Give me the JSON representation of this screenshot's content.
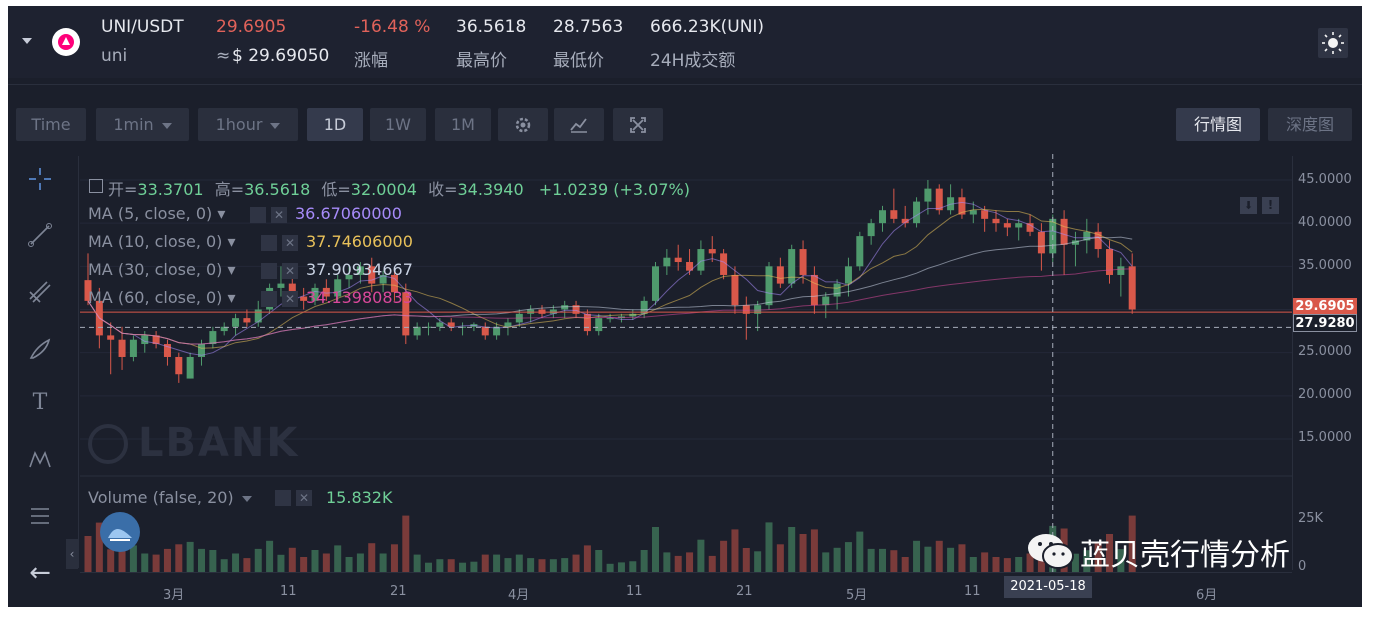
{
  "header": {
    "pair": "UNI/USDT",
    "name": "uni",
    "price": "29.6905",
    "usd_prefix": "≈",
    "usd_price": "$ 29.69050",
    "change": "-16.48 %",
    "change_label": "涨幅",
    "high": "36.5618",
    "high_label": "最高价",
    "low": "28.7563",
    "low_label": "最低价",
    "volume": "666.23K(UNI)",
    "volume_label": "24H成交额"
  },
  "toolbar": {
    "time": "Time",
    "min": "1min",
    "hour": "1hour",
    "d1": "1D",
    "w1": "1W",
    "m1": "1M",
    "market_tab": "行情图",
    "depth_tab": "深度图"
  },
  "legend": {
    "ohlc": {
      "open_label": "开=",
      "open": "33.3701",
      "high_label": "高=",
      "high": "36.5618",
      "low_label": "低=",
      "low": "32.0004",
      "close_label": "收=",
      "close": "34.3940",
      "change": "+1.0239 (+3.07%)"
    },
    "ma": [
      {
        "label": "MA (5, close, 0)",
        "value": "36.67060000",
        "color": "#a78bfa"
      },
      {
        "label": "MA (10, close, 0)",
        "value": "37.74606000",
        "color": "#e8c15a"
      },
      {
        "label": "MA (30, close, 0)",
        "value": "37.90934667",
        "color": "#c9d2e3"
      },
      {
        "label": "MA (60, close, 0)",
        "value": "34.13980833",
        "color": "#d9489a"
      }
    ],
    "volume_label": "Volume (false, 20)",
    "volume_value": "15.832K"
  },
  "y_axis": [
    "45.0000",
    "40.0000",
    "35.0000",
    "25.0000",
    "20.0000",
    "15.0000"
  ],
  "price_tag": "29.6905",
  "cross_tag": "27.9280",
  "vol_axis": [
    "25K",
    "0"
  ],
  "x_axis": [
    "3月",
    "11",
    "21",
    "4月",
    "11",
    "21",
    "5月",
    "11",
    "6月"
  ],
  "cursor_date": "2021-05-18",
  "watermark": "LBANK",
  "wechat_brand": "蓝贝壳行情分析",
  "colors": {
    "up": "#4f9a6d",
    "down": "#d9584a",
    "bg": "#1b1f2b"
  },
  "chart_data": {
    "type": "candlestick",
    "ohlc": [
      [
        33.4,
        36.5,
        30.5,
        31.0
      ],
      [
        31.0,
        32.5,
        25.5,
        27.0
      ],
      [
        27.0,
        28.5,
        22.5,
        26.5
      ],
      [
        26.5,
        28.0,
        23.0,
        24.5
      ],
      [
        24.5,
        27.0,
        24.0,
        26.5
      ],
      [
        26.0,
        27.5,
        25.0,
        27.0
      ],
      [
        27.0,
        27.5,
        25.5,
        26.0
      ],
      [
        26.0,
        26.5,
        23.5,
        24.5
      ],
      [
        24.5,
        25.0,
        21.5,
        22.5
      ],
      [
        22.0,
        25.0,
        22.0,
        24.5
      ],
      [
        24.5,
        26.5,
        23.5,
        26.0
      ],
      [
        26.0,
        28.0,
        25.5,
        27.5
      ],
      [
        27.5,
        28.5,
        27.0,
        28.0
      ],
      [
        28.0,
        29.5,
        27.0,
        29.0
      ],
      [
        29.0,
        30.0,
        28.0,
        28.5
      ],
      [
        28.5,
        31.0,
        28.0,
        30.0
      ],
      [
        30.0,
        33.0,
        29.5,
        32.5
      ],
      [
        32.5,
        35.0,
        31.5,
        33.0
      ],
      [
        33.0,
        34.0,
        30.5,
        31.5
      ],
      [
        31.5,
        32.5,
        30.0,
        31.0
      ],
      [
        31.0,
        33.0,
        30.5,
        32.5
      ],
      [
        32.5,
        33.5,
        31.0,
        31.5
      ],
      [
        31.5,
        34.0,
        31.0,
        33.5
      ],
      [
        33.5,
        35.0,
        32.5,
        34.0
      ],
      [
        34.0,
        35.5,
        33.0,
        35.0
      ],
      [
        35.0,
        36.0,
        32.0,
        33.0
      ],
      [
        33.0,
        34.5,
        32.0,
        34.0
      ],
      [
        34.0,
        34.5,
        31.0,
        32.0
      ],
      [
        32.0,
        33.0,
        26.0,
        27.0
      ],
      [
        27.0,
        28.5,
        26.5,
        28.0
      ],
      [
        28.0,
        28.5,
        27.0,
        28.0
      ],
      [
        28.0,
        29.0,
        27.5,
        28.5
      ],
      [
        28.5,
        29.0,
        27.5,
        28.0
      ],
      [
        28.0,
        28.5,
        27.0,
        28.0
      ],
      [
        28.0,
        28.5,
        27.5,
        28.3
      ],
      [
        28.0,
        28.5,
        26.5,
        27.0
      ],
      [
        27.0,
        28.5,
        26.5,
        28.0
      ],
      [
        28.0,
        29.0,
        27.0,
        28.5
      ],
      [
        28.5,
        30.0,
        28.0,
        29.5
      ],
      [
        29.5,
        30.5,
        28.5,
        30.0
      ],
      [
        30.0,
        30.5,
        29.0,
        29.5
      ],
      [
        29.5,
        30.5,
        29.0,
        30.0
      ],
      [
        30.0,
        31.0,
        29.0,
        30.5
      ],
      [
        30.5,
        31.0,
        29.0,
        29.5
      ],
      [
        29.5,
        30.0,
        27.0,
        27.5
      ],
      [
        27.5,
        29.5,
        27.0,
        29.0
      ],
      [
        29.0,
        29.5,
        28.5,
        29.0
      ],
      [
        29.0,
        29.5,
        28.5,
        29.2
      ],
      [
        29.2,
        30.0,
        28.8,
        29.5
      ],
      [
        29.5,
        31.5,
        29.0,
        31.0
      ],
      [
        31.0,
        35.5,
        30.5,
        35.0
      ],
      [
        35.0,
        37.0,
        34.0,
        36.0
      ],
      [
        36.0,
        37.5,
        34.5,
        35.5
      ],
      [
        35.5,
        37.0,
        34.0,
        34.5
      ],
      [
        34.5,
        38.0,
        34.0,
        37.0
      ],
      [
        37.0,
        38.5,
        35.5,
        36.5
      ],
      [
        36.5,
        37.0,
        33.5,
        34.0
      ],
      [
        34.0,
        35.0,
        29.5,
        30.5
      ],
      [
        30.5,
        31.5,
        26.5,
        29.5
      ],
      [
        29.5,
        31.0,
        27.5,
        30.5
      ],
      [
        30.5,
        35.5,
        30.0,
        35.0
      ],
      [
        35.0,
        36.0,
        32.5,
        33.0
      ],
      [
        33.0,
        37.5,
        32.5,
        37.0
      ],
      [
        37.0,
        38.0,
        33.0,
        34.0
      ],
      [
        34.0,
        35.0,
        29.5,
        30.5
      ],
      [
        30.5,
        32.0,
        29.0,
        31.5
      ],
      [
        31.5,
        33.5,
        30.0,
        33.0
      ],
      [
        33.0,
        36.0,
        31.5,
        35.0
      ],
      [
        35.0,
        39.0,
        34.5,
        38.5
      ],
      [
        38.5,
        40.5,
        37.5,
        40.0
      ],
      [
        40.0,
        42.0,
        39.0,
        41.5
      ],
      [
        41.5,
        44.0,
        40.0,
        40.5
      ],
      [
        40.5,
        42.0,
        39.5,
        40.0
      ],
      [
        40.0,
        43.0,
        39.5,
        42.5
      ],
      [
        42.5,
        45.0,
        41.0,
        44.0
      ],
      [
        44.0,
        44.5,
        41.0,
        41.5
      ],
      [
        41.5,
        44.5,
        41.0,
        43.0
      ],
      [
        43.0,
        44.0,
        40.5,
        41.0
      ],
      [
        41.0,
        42.5,
        40.0,
        41.5
      ],
      [
        41.5,
        42.0,
        39.0,
        40.5
      ],
      [
        40.5,
        41.5,
        39.0,
        40.0
      ],
      [
        40.0,
        40.5,
        38.5,
        39.5
      ],
      [
        39.5,
        40.5,
        38.0,
        40.0
      ],
      [
        40.0,
        41.0,
        38.5,
        39.0
      ],
      [
        39.0,
        40.0,
        34.5,
        36.5
      ],
      [
        36.5,
        41.0,
        35.5,
        40.5
      ],
      [
        40.5,
        41.5,
        34.0,
        37.5
      ],
      [
        37.5,
        39.0,
        35.0,
        38.0
      ],
      [
        38.0,
        40.5,
        36.5,
        39.0
      ],
      [
        39.0,
        40.0,
        36.0,
        37.0
      ],
      [
        37.0,
        38.0,
        33.0,
        34.0
      ],
      [
        34.0,
        36.0,
        31.5,
        35.0
      ],
      [
        35.0,
        36.5,
        29.5,
        30.0
      ]
    ],
    "volume_scale": "relative",
    "ylim": [
      10,
      46
    ],
    "xlabel": "",
    "ylabel": ""
  }
}
